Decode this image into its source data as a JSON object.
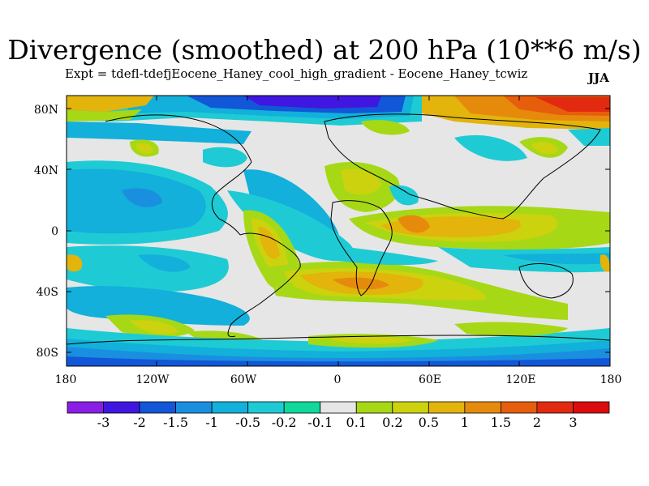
{
  "title": "Divergence (smoothed) at 200 hPa (10**6 m/s)",
  "subtitle": "Expt = tdefl-tdefjEocene_Haney_cool_high_gradient - Eocene_Haney_tcwiz",
  "season": "JJA",
  "lat_labels": [
    "80N",
    "40N",
    "0",
    "40S",
    "80S"
  ],
  "lon_labels": [
    "180",
    "120W",
    "60W",
    "0",
    "60E",
    "120E",
    "180"
  ],
  "colorbar": {
    "labels": [
      "-3",
      "-2",
      "-1.5",
      "-1",
      "-0.5",
      "-0.2",
      "-0.1",
      "0.1",
      "0.2",
      "0.5",
      "1",
      "1.5",
      "2",
      "3"
    ],
    "colors": [
      "#8a1ee6",
      "#3f17e0",
      "#1257d8",
      "#1a8fe0",
      "#12b0da",
      "#1ecbd4",
      "#10d89a",
      "#e6e6e6",
      "#a6d816",
      "#ccd20e",
      "#e2b40c",
      "#e68a0c",
      "#e65e0c",
      "#e22a10",
      "#dc0c0c"
    ]
  },
  "colors": {
    "land_outline": "#000000",
    "neutral": "#e6e6e6"
  }
}
